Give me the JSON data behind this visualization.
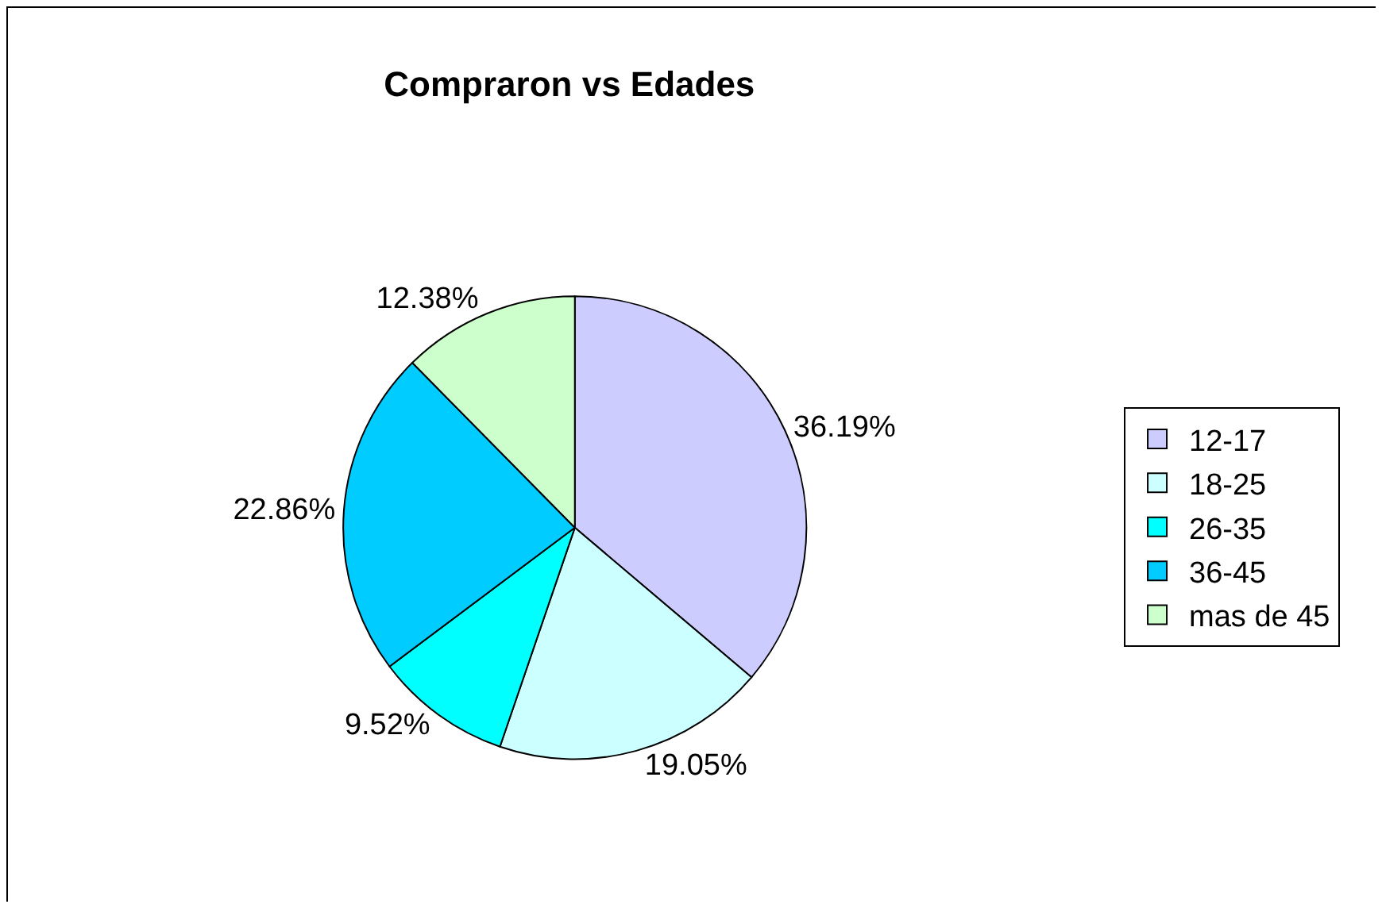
{
  "chart_data": {
    "type": "pie",
    "title": "Compraron vs Edades",
    "categories": [
      "12-17",
      "18-25",
      "26-35",
      "36-45",
      "mas de 45"
    ],
    "values": [
      36.19,
      19.05,
      9.52,
      22.86,
      12.38
    ],
    "value_labels": [
      "36.19%",
      "19.05%",
      "9.52%",
      "22.86%",
      "12.38%"
    ],
    "colors": [
      "#ccccff",
      "#ccffff",
      "#00ffff",
      "#00ccff",
      "#ccffcc"
    ],
    "legend": "right"
  }
}
